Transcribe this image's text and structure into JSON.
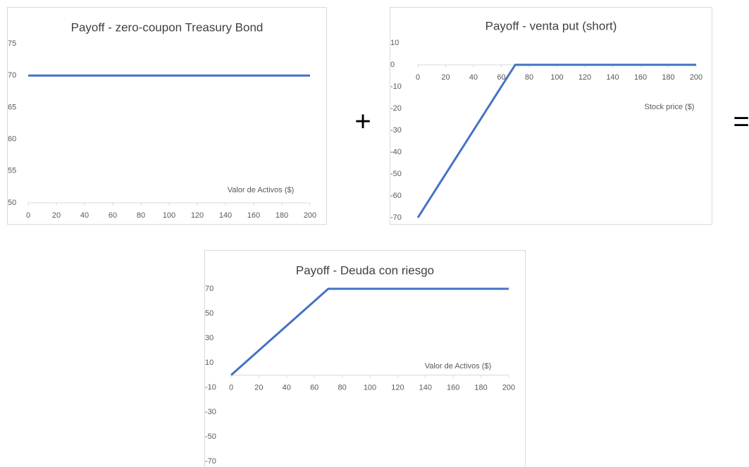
{
  "chart_data": [
    {
      "type": "line",
      "title": "Payoff - zero-coupon Treasury Bond",
      "x_label": "Valor de Activos ($)",
      "x": [
        0,
        200
      ],
      "values": [
        70,
        70
      ],
      "color": "#4472c4",
      "xlim": [
        0,
        200
      ],
      "xticks": [
        0,
        20,
        40,
        60,
        80,
        100,
        120,
        140,
        160,
        180,
        200
      ],
      "ylim": [
        50,
        75
      ],
      "yticks": [
        50,
        55,
        60,
        65,
        70,
        75
      ]
    },
    {
      "type": "line",
      "title": "Payoff - venta put (short)",
      "x_label": "Stock price  ($)",
      "x": [
        0,
        10,
        20,
        30,
        40,
        50,
        60,
        70,
        200
      ],
      "values": [
        -70,
        -60,
        -50,
        -40,
        -30,
        -20,
        -10,
        0,
        0
      ],
      "color": "#4472c4",
      "xlim": [
        0,
        200
      ],
      "xticks": [
        0,
        20,
        40,
        60,
        80,
        100,
        120,
        140,
        160,
        180,
        200
      ],
      "ylim": [
        -70,
        10
      ],
      "yticks": [
        -70,
        -60,
        -50,
        -40,
        -30,
        -20,
        -10,
        0,
        10
      ]
    },
    {
      "type": "line",
      "title": "Payoff - Deuda con riesgo",
      "x_label": "Valor de Activos ($)",
      "x": [
        0,
        10,
        20,
        30,
        40,
        50,
        60,
        70,
        200
      ],
      "values": [
        0,
        10,
        20,
        30,
        40,
        50,
        60,
        70,
        70
      ],
      "color": "#4472c4",
      "xlim": [
        0,
        200
      ],
      "xticks": [
        0,
        20,
        40,
        60,
        80,
        100,
        120,
        140,
        160,
        180,
        200
      ],
      "ylim": [
        -70,
        70
      ],
      "yticks": [
        -70,
        -50,
        -30,
        -10,
        10,
        30,
        50,
        70
      ]
    }
  ],
  "operators": [
    "+",
    "="
  ]
}
